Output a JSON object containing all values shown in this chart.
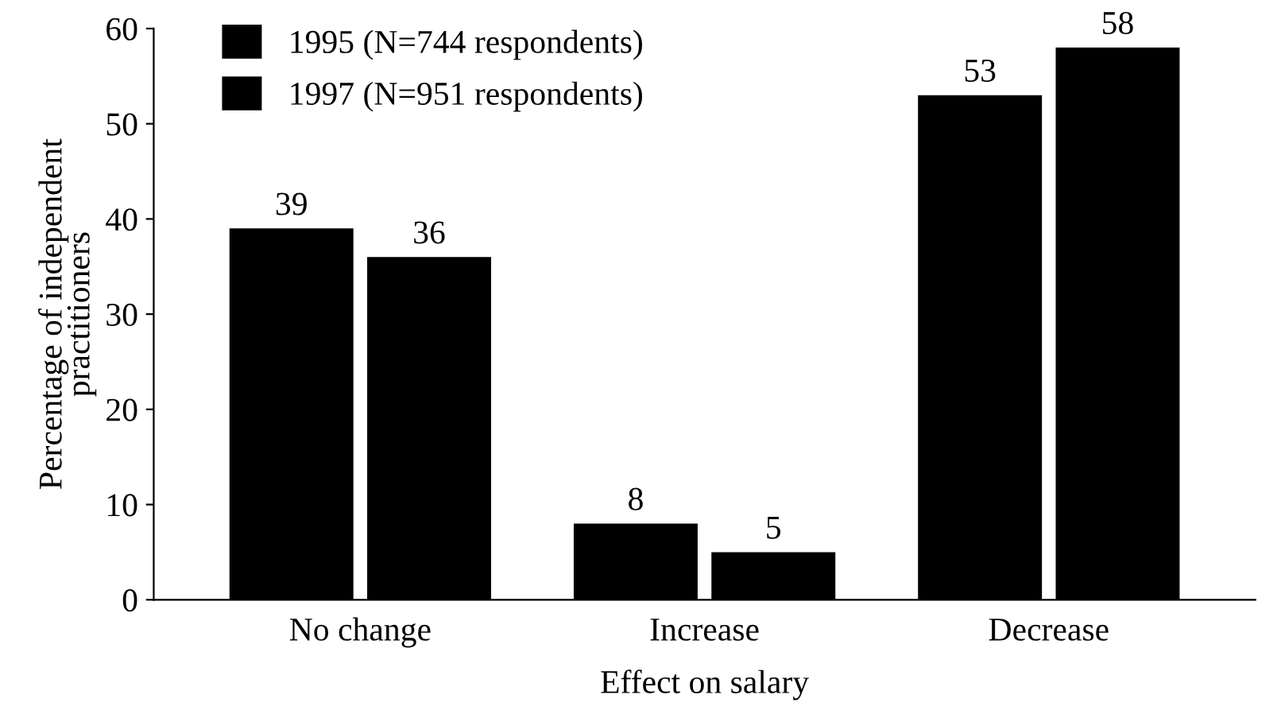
{
  "chart_data": {
    "type": "bar",
    "xlabel": "Effect on salary",
    "ylabel": "Percentage of independent\npractitioners",
    "categories": [
      "No change",
      "Increase",
      "Decrease"
    ],
    "series": [
      {
        "name": "1995 (N=744 respondents)",
        "color": "#000000",
        "values": [
          39,
          8,
          53
        ]
      },
      {
        "name": "1997 (N=951 respondents)",
        "color": "#000000",
        "values": [
          36,
          5,
          58
        ]
      }
    ],
    "ylim": [
      0,
      60
    ],
    "yticks": [
      0,
      10,
      20,
      30,
      40,
      50,
      60
    ],
    "data_labels": true,
    "grid": false,
    "legend": "top left"
  }
}
